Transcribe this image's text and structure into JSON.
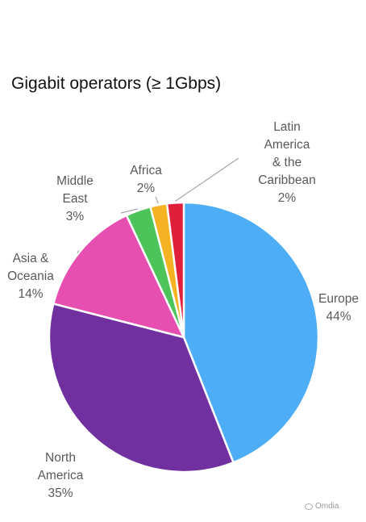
{
  "chart_data": {
    "type": "pie",
    "title": "Gigabit operators (≥ 1Gbps)",
    "slices": [
      {
        "label_lines": [
          "Europe",
          "44%"
        ],
        "value": 44,
        "color": "#4DADF7"
      },
      {
        "label_lines": [
          "North",
          "America",
          "35%"
        ],
        "value": 35,
        "color": "#7030A0"
      },
      {
        "label_lines": [
          "Asia &",
          "Oceania",
          "14%"
        ],
        "value": 14,
        "color": "#E64FAF"
      },
      {
        "label_lines": [
          "Middle",
          "East",
          "3%"
        ],
        "value": 3,
        "color": "#4CC45A"
      },
      {
        "label_lines": [
          "Africa",
          "2%"
        ],
        "value": 2,
        "color": "#F5B324"
      },
      {
        "label_lines": [
          "Latin",
          "America",
          "& the",
          "Caribbean",
          "2%"
        ],
        "value": 2,
        "color": "#E0203A"
      }
    ],
    "legend": "none",
    "labels": "outside"
  },
  "watermark": {
    "icon": "chat-bubble-icon",
    "text": "Omdia"
  }
}
